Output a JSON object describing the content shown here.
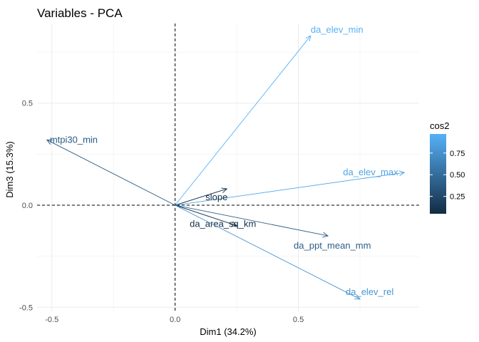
{
  "chart_data": {
    "type": "scatter",
    "title": "Variables - PCA",
    "xlabel": "Dim1 (34.2%)",
    "ylabel": "Dim3 (15.3%)",
    "xlim": [
      -0.56,
      0.99
    ],
    "ylim": [
      -0.52,
      0.89
    ],
    "x_ticks": [
      -0.5,
      0.0,
      0.5
    ],
    "x_tick_labels": [
      "-0.5",
      "0.0",
      "0.5"
    ],
    "y_ticks": [
      -0.5,
      0.0,
      0.5
    ],
    "y_tick_labels": [
      "-0.5",
      "0.0",
      "0.5"
    ],
    "grid": true,
    "reference_lines": [
      0,
      0
    ],
    "legend": {
      "title": "cos2",
      "position": "right",
      "ticks": [
        0.25,
        0.5,
        0.75
      ],
      "tick_labels": [
        "0.25",
        "0.50",
        "0.75"
      ],
      "range": [
        0.05,
        0.97
      ],
      "color_low": "#132B43",
      "color_high": "#56B1F7"
    },
    "variables": [
      {
        "name": "da_elev_min",
        "x": 0.55,
        "y": 0.83,
        "cos2": 0.97
      },
      {
        "name": "mtpi30_min",
        "x": -0.52,
        "y": 0.32,
        "cos2": 0.37
      },
      {
        "name": "da_elev_max",
        "x": 0.93,
        "y": 0.16,
        "cos2": 0.89
      },
      {
        "name": "slope",
        "x": 0.21,
        "y": 0.08,
        "cos2": 0.05
      },
      {
        "name": "da_area_sq_km",
        "x": 0.25,
        "y": -0.1,
        "cos2": 0.07
      },
      {
        "name": "da_ppt_mean_mm",
        "x": 0.62,
        "y": -0.15,
        "cos2": 0.4
      },
      {
        "name": "da_elev_rel",
        "x": 0.75,
        "y": -0.46,
        "cos2": 0.77
      }
    ]
  }
}
